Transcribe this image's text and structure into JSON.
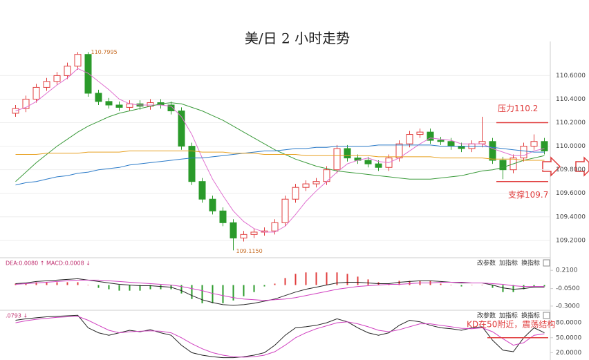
{
  "chart_data": [
    {
      "type": "candlestick",
      "title": "美/日 2 小时走势",
      "open": [
        110.28,
        110.32,
        110.4,
        110.5,
        110.55,
        110.6,
        110.68,
        110.78,
        110.45,
        110.38,
        110.35,
        110.33,
        110.36,
        110.34,
        110.37,
        110.35,
        110.3,
        110.0,
        109.7,
        109.55,
        109.45,
        109.35,
        109.22,
        109.25,
        109.27,
        109.28,
        109.35,
        109.55,
        109.65,
        109.68,
        109.7,
        109.8,
        109.98,
        109.9,
        109.88,
        109.85,
        109.82,
        109.9,
        110.02,
        110.1,
        110.12,
        110.05,
        110.04,
        110.0,
        109.98,
        110.02,
        110.04,
        109.88,
        109.8,
        109.9,
        110.0,
        110.04
      ],
      "high": [
        110.35,
        110.43,
        110.53,
        110.58,
        110.63,
        110.71,
        110.7995,
        110.8,
        110.48,
        110.41,
        110.38,
        110.39,
        110.39,
        110.4,
        110.4,
        110.38,
        110.33,
        110.03,
        109.73,
        109.58,
        109.48,
        109.38,
        109.28,
        109.3,
        109.31,
        109.38,
        109.58,
        109.68,
        109.71,
        109.73,
        109.83,
        110.01,
        110.01,
        109.93,
        109.91,
        109.88,
        109.93,
        110.05,
        110.13,
        110.15,
        110.15,
        110.08,
        110.07,
        110.03,
        110.05,
        110.25,
        110.07,
        109.91,
        109.93,
        110.03,
        110.1,
        110.07
      ],
      "low": [
        110.25,
        110.29,
        110.37,
        110.47,
        110.52,
        110.57,
        110.65,
        110.42,
        110.35,
        110.32,
        110.3,
        110.3,
        110.31,
        110.31,
        110.32,
        110.27,
        109.97,
        109.67,
        109.52,
        109.42,
        109.32,
        109.115,
        109.19,
        109.22,
        109.24,
        109.25,
        109.32,
        109.52,
        109.62,
        109.65,
        109.67,
        109.77,
        109.87,
        109.85,
        109.82,
        109.79,
        109.79,
        109.87,
        109.99,
        110.07,
        110.02,
        110.01,
        109.97,
        109.95,
        109.95,
        109.99,
        109.85,
        109.72,
        109.77,
        109.87,
        109.97,
        109.93
      ],
      "close": [
        110.32,
        110.4,
        110.5,
        110.55,
        110.6,
        110.68,
        110.78,
        110.45,
        110.38,
        110.35,
        110.33,
        110.36,
        110.34,
        110.37,
        110.35,
        110.3,
        110.0,
        109.7,
        109.55,
        109.45,
        109.35,
        109.22,
        109.25,
        109.27,
        109.28,
        109.35,
        109.55,
        109.65,
        109.68,
        109.7,
        109.8,
        109.98,
        109.9,
        109.88,
        109.85,
        109.82,
        109.9,
        110.02,
        110.1,
        110.12,
        110.05,
        110.04,
        110.0,
        109.98,
        110.02,
        110.04,
        109.88,
        109.8,
        109.9,
        110.0,
        110.04,
        109.96
      ],
      "up_color": "#e03c3c",
      "down_color": "#2a9a2a",
      "series": [
        {
          "color": "#e070d0",
          "values": [
            110.3,
            110.33,
            110.38,
            110.45,
            110.52,
            110.58,
            110.66,
            110.62,
            110.55,
            110.48,
            110.4,
            110.36,
            110.35,
            110.35,
            110.35,
            110.34,
            110.25,
            110.1,
            109.9,
            109.72,
            109.58,
            109.45,
            109.36,
            109.3,
            109.27,
            109.27,
            109.32,
            109.42,
            109.53,
            109.62,
            109.7,
            109.78,
            109.85,
            109.88,
            109.9,
            109.87,
            109.86,
            109.9,
            109.96,
            110.02,
            110.07,
            110.06,
            110.05,
            110.02,
            110.02,
            110.02,
            109.98,
            109.95,
            109.92,
            109.92,
            109.96,
            109.98
          ]
        },
        {
          "color": "#3a9a3a",
          "values": [
            109.7,
            109.78,
            109.86,
            109.93,
            110.0,
            110.06,
            110.12,
            110.17,
            110.21,
            110.25,
            110.28,
            110.3,
            110.32,
            110.34,
            110.36,
            110.37,
            110.36,
            110.33,
            110.3,
            110.26,
            110.22,
            110.17,
            110.12,
            110.07,
            110.02,
            109.97,
            109.93,
            109.89,
            109.86,
            109.83,
            109.81,
            109.79,
            109.78,
            109.77,
            109.76,
            109.75,
            109.74,
            109.73,
            109.72,
            109.72,
            109.72,
            109.73,
            109.74,
            109.75,
            109.77,
            109.79,
            109.8,
            109.82,
            109.85,
            109.88,
            109.9,
            109.92
          ]
        },
        {
          "color": "#2a7ac8",
          "values": [
            109.67,
            109.69,
            109.7,
            109.72,
            109.74,
            109.75,
            109.77,
            109.78,
            109.8,
            109.81,
            109.82,
            109.84,
            109.85,
            109.86,
            109.87,
            109.88,
            109.89,
            109.9,
            109.9,
            109.91,
            109.92,
            109.93,
            109.94,
            109.95,
            109.96,
            109.96,
            109.97,
            109.98,
            109.98,
            109.99,
            109.99,
            110.0,
            110.0,
            110.0,
            110.0,
            110.01,
            110.01,
            110.01,
            110.01,
            110.01,
            110.01,
            110.0,
            110.0,
            110.0,
            110.0,
            110.0,
            109.99,
            109.98,
            109.97,
            109.96,
            109.95,
            109.95
          ]
        },
        {
          "color": "#e8a020",
          "values": [
            109.93,
            109.93,
            109.93,
            109.94,
            109.94,
            109.94,
            109.94,
            109.95,
            109.95,
            109.95,
            109.95,
            109.96,
            109.96,
            109.96,
            109.96,
            109.96,
            109.96,
            109.96,
            109.95,
            109.95,
            109.95,
            109.94,
            109.94,
            109.94,
            109.93,
            109.93,
            109.93,
            109.93,
            109.92,
            109.92,
            109.92,
            109.92,
            109.92,
            109.92,
            109.92,
            109.91,
            109.91,
            109.91,
            109.91,
            109.91,
            109.91,
            109.9,
            109.9,
            109.9,
            109.9,
            109.9,
            109.89,
            109.89,
            109.89,
            109.88,
            109.88,
            109.88
          ]
        }
      ],
      "ylim": [
        109.07,
        110.89
      ],
      "yticks": [
        {
          "value": 109.2,
          "label": "109.2000"
        },
        {
          "value": 109.4,
          "label": "109.4000"
        },
        {
          "value": 109.6,
          "label": "109.6000"
        },
        {
          "value": 109.8,
          "label": "109.8000"
        },
        {
          "value": 110.0,
          "label": "110.0000"
        },
        {
          "value": 110.2,
          "label": "110.2000"
        },
        {
          "value": 110.4,
          "label": "110.4000"
        },
        {
          "value": 110.6,
          "label": "110.6000"
        }
      ],
      "grid": true,
      "max_label": "110.7995",
      "min_label": "109.1150",
      "annotations": [
        {
          "text": "压力110.2",
          "value": 110.2,
          "color": "#e03c3c"
        },
        {
          "text": "支撑109.7",
          "value": 109.7,
          "color": "#e03c3c"
        }
      ]
    },
    {
      "type": "macd",
      "header": "DEA:0.0080 ↑ MACD:0.0008 ↓",
      "buttons": [
        "改参数",
        "加指标",
        "换指标"
      ],
      "histogram": [
        0.02,
        0.02,
        0.04,
        0.04,
        0.04,
        0.04,
        0.04,
        0.0,
        -0.04,
        -0.06,
        -0.08,
        -0.08,
        -0.08,
        -0.06,
        -0.06,
        -0.06,
        -0.12,
        -0.2,
        -0.26,
        -0.26,
        -0.26,
        -0.22,
        -0.16,
        -0.1,
        -0.02,
        0.02,
        0.1,
        0.16,
        0.18,
        0.18,
        0.18,
        0.18,
        0.16,
        0.12,
        0.08,
        0.04,
        0.02,
        0.06,
        0.06,
        0.06,
        0.06,
        0.02,
        0.0,
        -0.02,
        0.0,
        0.0,
        -0.04,
        -0.1,
        -0.1,
        -0.06,
        -0.02,
        -0.02
      ],
      "pos_color": "#e03c3c",
      "neg_color": "#2a9a2a",
      "series": [
        {
          "color": "#222222",
          "values": [
            0.02,
            0.03,
            0.05,
            0.06,
            0.07,
            0.08,
            0.09,
            0.07,
            0.05,
            0.03,
            0.01,
            0.0,
            -0.01,
            -0.01,
            -0.02,
            -0.03,
            -0.08,
            -0.15,
            -0.21,
            -0.25,
            -0.28,
            -0.29,
            -0.28,
            -0.26,
            -0.23,
            -0.2,
            -0.15,
            -0.1,
            -0.06,
            -0.03,
            0.0,
            0.03,
            0.04,
            0.04,
            0.03,
            0.02,
            0.02,
            0.04,
            0.05,
            0.06,
            0.06,
            0.05,
            0.04,
            0.03,
            0.03,
            0.03,
            0.0,
            -0.04,
            -0.06,
            -0.05,
            -0.03,
            -0.03
          ]
        },
        {
          "color": "#d040c0",
          "values": [
            0.01,
            0.02,
            0.03,
            0.04,
            0.05,
            0.06,
            0.07,
            0.07,
            0.07,
            0.06,
            0.05,
            0.04,
            0.03,
            0.02,
            0.01,
            0.0,
            -0.02,
            -0.05,
            -0.08,
            -0.12,
            -0.15,
            -0.18,
            -0.2,
            -0.21,
            -0.22,
            -0.21,
            -0.2,
            -0.18,
            -0.15,
            -0.12,
            -0.09,
            -0.06,
            -0.04,
            -0.02,
            -0.01,
            0.0,
            0.01,
            0.01,
            0.02,
            0.03,
            0.03,
            0.04,
            0.04,
            0.04,
            0.03,
            0.03,
            0.02,
            0.01,
            -0.01,
            -0.02,
            -0.02,
            -0.02
          ]
        }
      ],
      "ylim": [
        -0.33,
        0.36
      ],
      "yticks": [
        {
          "value": -0.3,
          "label": "-0.3000"
        },
        {
          "value": -0.05,
          "label": "-0.0500"
        },
        {
          "value": 0.21,
          "label": "0.2100"
        }
      ]
    },
    {
      "type": "kd",
      "header": ".0793 ↓",
      "buttons": [
        "改参数",
        "加指标",
        "换指标"
      ],
      "series": [
        {
          "color": "#222222",
          "values": [
            85,
            88,
            90,
            92,
            93,
            94,
            95,
            70,
            60,
            55,
            60,
            65,
            62,
            66,
            60,
            55,
            35,
            20,
            15,
            12,
            10,
            10,
            12,
            15,
            20,
            35,
            55,
            70,
            72,
            75,
            80,
            88,
            82,
            70,
            60,
            55,
            60,
            75,
            85,
            82,
            75,
            70,
            68,
            65,
            70,
            72,
            45,
            25,
            22,
            50,
            70,
            60
          ]
        },
        {
          "color": "#d040c0",
          "values": [
            80,
            84,
            87,
            89,
            91,
            92,
            93,
            85,
            75,
            65,
            60,
            62,
            63,
            64,
            63,
            60,
            50,
            38,
            28,
            20,
            15,
            12,
            11,
            12,
            15,
            22,
            35,
            50,
            60,
            68,
            74,
            80,
            82,
            78,
            72,
            65,
            62,
            66,
            72,
            78,
            78,
            75,
            72,
            69,
            68,
            70,
            62,
            48,
            35,
            40,
            55,
            58
          ]
        }
      ],
      "ylim": [
        9.5,
        101
      ],
      "yticks": [
        {
          "value": 20,
          "label": "20.0000"
        },
        {
          "value": 50,
          "label": "50.0000"
        },
        {
          "value": 80,
          "label": "80.0000"
        }
      ],
      "annotations": [
        {
          "text": "KD在50附近，震荡结构",
          "value": 50,
          "color": "#e03c3c"
        }
      ]
    }
  ]
}
